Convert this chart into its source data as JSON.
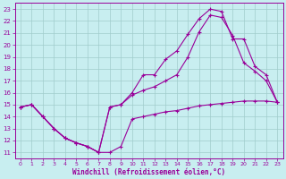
{
  "xlabel": "Windchill (Refroidissement éolien,°C)",
  "bg_color": "#c8eef0",
  "line_color": "#990099",
  "grid_color": "#a0cccc",
  "xlim": [
    -0.5,
    23.5
  ],
  "ylim": [
    10.5,
    23.5
  ],
  "xticks": [
    0,
    1,
    2,
    3,
    4,
    5,
    6,
    7,
    8,
    9,
    10,
    11,
    12,
    13,
    14,
    15,
    16,
    17,
    18,
    19,
    20,
    21,
    22,
    23
  ],
  "yticks": [
    11,
    12,
    13,
    14,
    15,
    16,
    17,
    18,
    19,
    20,
    21,
    22,
    23
  ],
  "line1_x": [
    0,
    1,
    2,
    3,
    4,
    5,
    6,
    7,
    8,
    9,
    10,
    11,
    12,
    13,
    14,
    15,
    16,
    17,
    18,
    19,
    20,
    21,
    22,
    23
  ],
  "line1_y": [
    14.8,
    15.0,
    14.0,
    13.0,
    12.2,
    11.8,
    11.5,
    11.0,
    11.0,
    11.5,
    13.8,
    14.0,
    14.2,
    14.4,
    14.5,
    14.7,
    14.9,
    15.0,
    15.1,
    15.2,
    15.3,
    15.3,
    15.3,
    15.2
  ],
  "line2_x": [
    0,
    1,
    2,
    3,
    4,
    5,
    6,
    7,
    8,
    9,
    10,
    11,
    12,
    13,
    14,
    15,
    16,
    17,
    18,
    19,
    20,
    21,
    22,
    23
  ],
  "line2_y": [
    14.8,
    15.0,
    14.0,
    13.0,
    12.2,
    11.8,
    11.5,
    11.0,
    14.8,
    15.0,
    16.0,
    17.5,
    17.5,
    18.8,
    19.5,
    20.9,
    22.2,
    23.0,
    22.8,
    20.5,
    20.5,
    18.2,
    17.5,
    15.2
  ],
  "line3_x": [
    0,
    1,
    2,
    3,
    4,
    5,
    6,
    7,
    8,
    9,
    10,
    11,
    12,
    13,
    14,
    15,
    16,
    17,
    18,
    19,
    20,
    21,
    22,
    23
  ],
  "line3_y": [
    14.8,
    15.0,
    14.0,
    13.0,
    12.2,
    11.8,
    11.5,
    11.0,
    14.8,
    15.0,
    15.8,
    16.2,
    16.5,
    17.0,
    17.5,
    19.0,
    21.1,
    22.5,
    22.3,
    20.8,
    18.5,
    17.8,
    17.0,
    15.2
  ]
}
